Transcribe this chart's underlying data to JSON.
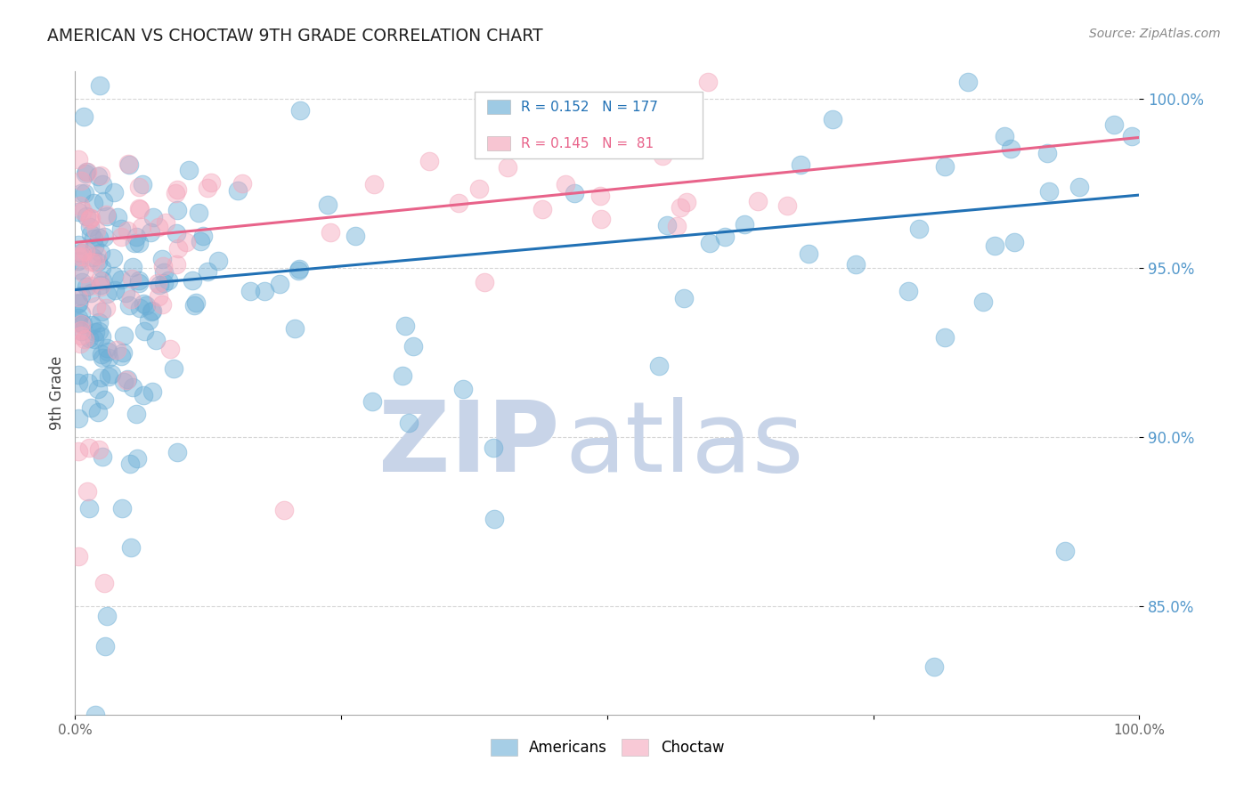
{
  "title": "AMERICAN VS CHOCTAW 9TH GRADE CORRELATION CHART",
  "source": "Source: ZipAtlas.com",
  "ylabel": "9th Grade",
  "xlim": [
    0.0,
    1.0
  ],
  "ylim": [
    0.818,
    1.008
  ],
  "yticks": [
    0.85,
    0.9,
    0.95,
    1.0
  ],
  "ytick_labels": [
    "85.0%",
    "90.0%",
    "95.0%",
    "100.0%"
  ],
  "xticks": [
    0.0,
    0.25,
    0.5,
    0.75,
    1.0
  ],
  "xtick_labels": [
    "0.0%",
    "",
    "",
    "",
    "100.0%"
  ],
  "legend_blue_r": "R = 0.152",
  "legend_blue_n": "N = 177",
  "legend_pink_r": "R = 0.145",
  "legend_pink_n": "N =  81",
  "blue_color": "#6baed6",
  "pink_color": "#f4a6bb",
  "blue_line_color": "#2171b5",
  "pink_line_color": "#e8638a",
  "background_color": "#ffffff",
  "grid_color": "#cccccc",
  "watermark_zip": "ZIP",
  "watermark_atlas": "atlas",
  "watermark_color": "#c8d4e8",
  "title_color": "#222222",
  "axis_label_color": "#444444",
  "tick_label_color_y": "#5599cc",
  "tick_label_color_x": "#666666",
  "legend_label_americans": "Americans",
  "legend_label_choctaw": "Choctaw",
  "blue_line_x0": 0.0,
  "blue_line_x1": 1.0,
  "blue_line_y0": 0.9435,
  "blue_line_y1": 0.9715,
  "pink_line_x0": 0.0,
  "pink_line_x1": 1.0,
  "pink_line_y0": 0.9575,
  "pink_line_y1": 0.9885
}
